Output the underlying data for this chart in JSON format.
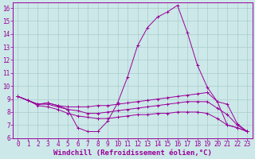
{
  "background_color": "#cce8e8",
  "grid_color": "#aacccc",
  "line_color": "#990099",
  "xlabel": "Windchill (Refroidissement éolien,°C)",
  "xlabel_fontsize": 6.5,
  "tick_fontsize": 5.5,
  "xlim": [
    -0.5,
    23.5
  ],
  "ylim": [
    6,
    16.4
  ],
  "yticks": [
    6,
    7,
    8,
    9,
    10,
    11,
    12,
    13,
    14,
    15,
    16
  ],
  "xticks": [
    0,
    1,
    2,
    3,
    4,
    5,
    6,
    7,
    8,
    9,
    10,
    11,
    12,
    13,
    14,
    15,
    16,
    17,
    18,
    19,
    20,
    21,
    22,
    23
  ],
  "series": [
    {
      "x": [
        0,
        1,
        2,
        3,
        4,
        5,
        6,
        7,
        8,
        9,
        10,
        11,
        12,
        13,
        14,
        15,
        16,
        17,
        18,
        19,
        20,
        21,
        22,
        23
      ],
      "y": [
        9.2,
        8.9,
        8.6,
        8.7,
        8.5,
        8.2,
        6.8,
        6.5,
        6.5,
        7.3,
        8.7,
        10.7,
        13.1,
        14.5,
        15.3,
        15.7,
        16.2,
        14.1,
        11.6,
        9.9,
        8.8,
        7.0,
        6.8,
        6.5
      ]
    },
    {
      "x": [
        0,
        1,
        2,
        3,
        4,
        5,
        6,
        7,
        8,
        9,
        10,
        11,
        12,
        13,
        14,
        15,
        16,
        17,
        18,
        19,
        20,
        21,
        22,
        23
      ],
      "y": [
        9.2,
        8.9,
        8.6,
        8.7,
        8.5,
        8.4,
        8.4,
        8.4,
        8.5,
        8.5,
        8.6,
        8.7,
        8.8,
        8.9,
        9.0,
        9.1,
        9.2,
        9.3,
        9.4,
        9.5,
        8.8,
        8.6,
        7.1,
        6.5
      ]
    },
    {
      "x": [
        0,
        1,
        2,
        3,
        4,
        5,
        6,
        7,
        8,
        9,
        10,
        11,
        12,
        13,
        14,
        15,
        16,
        17,
        18,
        19,
        20,
        21,
        22,
        23
      ],
      "y": [
        9.2,
        8.9,
        8.6,
        8.6,
        8.4,
        8.2,
        8.1,
        7.9,
        7.9,
        8.0,
        8.1,
        8.2,
        8.3,
        8.4,
        8.5,
        8.6,
        8.7,
        8.8,
        8.8,
        8.8,
        8.3,
        7.8,
        7.0,
        6.5
      ]
    },
    {
      "x": [
        0,
        1,
        2,
        3,
        4,
        5,
        6,
        7,
        8,
        9,
        10,
        11,
        12,
        13,
        14,
        15,
        16,
        17,
        18,
        19,
        20,
        21,
        22,
        23
      ],
      "y": [
        9.2,
        8.9,
        8.5,
        8.4,
        8.2,
        7.9,
        7.7,
        7.6,
        7.5,
        7.5,
        7.6,
        7.7,
        7.8,
        7.8,
        7.9,
        7.9,
        8.0,
        8.0,
        8.0,
        7.9,
        7.5,
        7.0,
        6.8,
        6.5
      ]
    }
  ]
}
